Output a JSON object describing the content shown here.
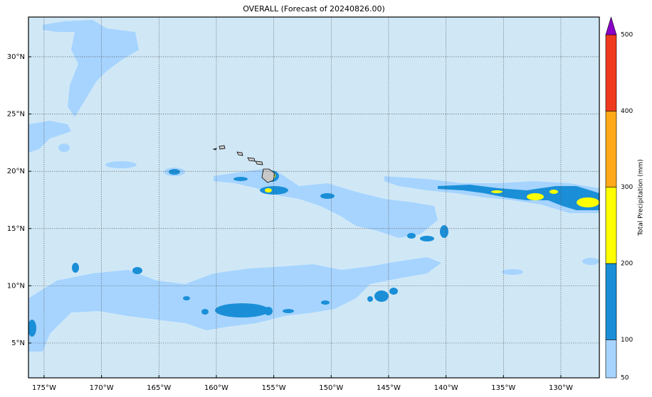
{
  "map": {
    "title": "OVERALL (Forecast of 20240826.00)",
    "lon_lim": [
      -176.36,
      -126.65
    ],
    "lat_lim": [
      1.96,
      33.47
    ],
    "lon_ticks": [
      {
        "value": -175,
        "label": "175°W"
      },
      {
        "value": -170,
        "label": "170°W"
      },
      {
        "value": -165,
        "label": "165°W"
      },
      {
        "value": -160,
        "label": "160°W"
      },
      {
        "value": -155,
        "label": "155°W"
      },
      {
        "value": -150,
        "label": "150°W"
      },
      {
        "value": -145,
        "label": "145°W"
      },
      {
        "value": -140,
        "label": "140°W"
      },
      {
        "value": -135,
        "label": "135°W"
      },
      {
        "value": -130,
        "label": "130°W"
      }
    ],
    "lat_ticks": [
      {
        "value": 5,
        "label": "5°N"
      },
      {
        "value": 10,
        "label": "10°N"
      },
      {
        "value": 15,
        "label": "15°N"
      },
      {
        "value": 20,
        "label": "20°N"
      },
      {
        "value": 25,
        "label": "25°N"
      },
      {
        "value": 30,
        "label": "30°N"
      }
    ],
    "grid": true
  },
  "colorbar": {
    "label": "Total Precipitation (mm)",
    "levels": [
      50,
      100,
      200,
      300,
      400,
      500
    ],
    "colors": [
      "#a6d4ff",
      "#1a8fd8",
      "#ffff00",
      "#ffa81a",
      "#f03a1e"
    ],
    "extend_color": "#8a00c8"
  }
}
